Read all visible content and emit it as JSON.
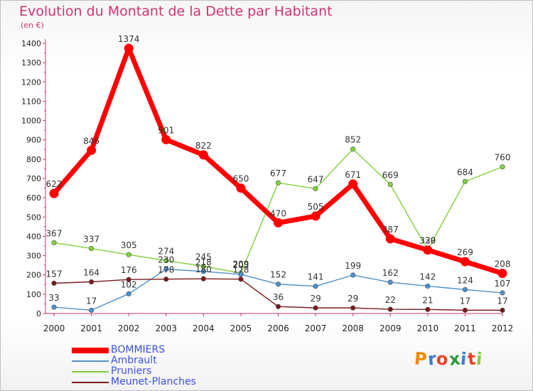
{
  "title": "Evolution du Montant de la Dette par Habitant",
  "subtitle": "(en €)",
  "logo": {
    "text": "Proxiti"
  },
  "colors": {
    "title": "#d1336f",
    "axis": "#d1336f",
    "legend_text": "#3b50e6",
    "label": "#333333"
  },
  "chart_data": {
    "type": "line",
    "title": "Evolution du Montant de la Dette par Habitant",
    "ylabel": "(en €)",
    "xlabel": "",
    "ylim": [
      0,
      1400
    ],
    "yticks": [
      "0",
      "100",
      "200",
      "300",
      "400",
      "500",
      "600",
      "700",
      "800",
      "900",
      "1000",
      "1100",
      "1200",
      "1300",
      "1400"
    ],
    "grid": false,
    "legend_position": "bottom-left",
    "x": [
      "2000",
      "2001",
      "2002",
      "2003",
      "2004",
      "2005",
      "2006",
      "2007",
      "2008",
      "2009",
      "2010",
      "2011",
      "2012"
    ],
    "series": [
      {
        "name": "BOMMIERS",
        "color": "#ff0000",
        "values": [
          622,
          846,
          1374,
          901,
          822,
          650,
          470,
          505,
          671,
          387,
          329,
          269,
          208
        ]
      },
      {
        "name": "Ambrault",
        "color": "#4d90c9",
        "values": [
          33,
          17,
          102,
          230,
          218,
          203,
          152,
          141,
          199,
          162,
          142,
          124,
          107
        ]
      },
      {
        "name": "Pruniers",
        "color": "#7ed03a",
        "values": [
          367,
          337,
          305,
          274,
          245,
          209,
          677,
          647,
          852,
          669,
          330,
          684,
          760
        ]
      },
      {
        "name": "Meunet-Planches",
        "color": "#7a1a1a",
        "values": [
          157,
          164,
          176,
          178,
          180,
          178,
          36,
          29,
          29,
          22,
          21,
          17,
          17
        ]
      }
    ]
  }
}
